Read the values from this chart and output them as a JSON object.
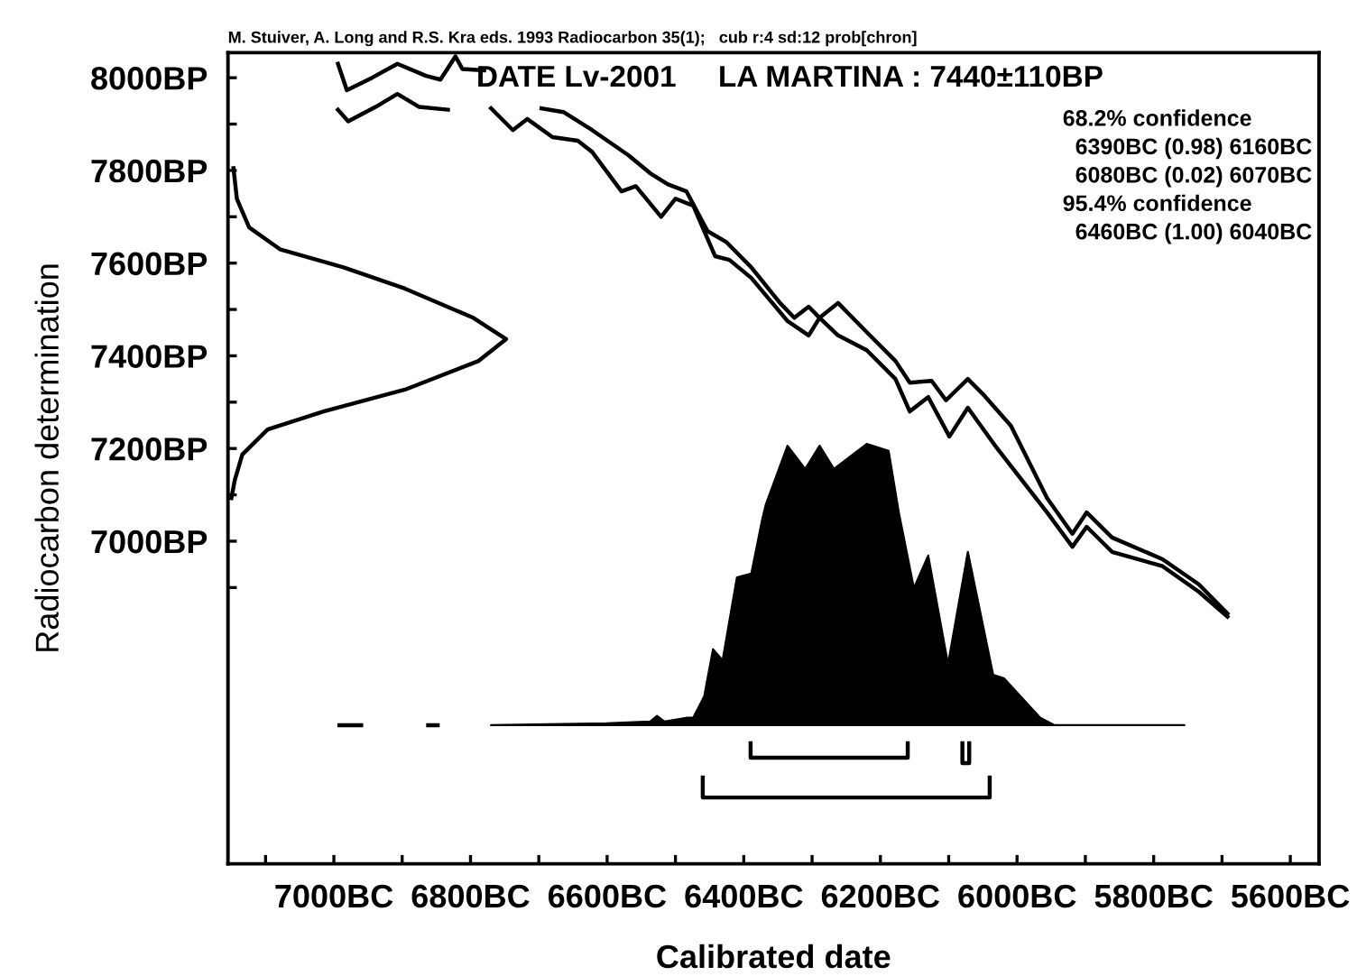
{
  "chart_data": {
    "type": "line",
    "title": "DATE Lv-2001     LA MARTINA : 7440±110BP",
    "xlabel": "Calibrated date",
    "ylabel": "Radiocarbon determination",
    "annotations": [
      "M. Stuiver, A. Long and R.S. Kra eds. 1993 Radiocarbon 35(1);   cub r:4 sd:12 prob[chron]",
      "68.2% confidence\n  6390BC (0.98) 6160BC\n  6080BC (0.02) 6070BC\n95.4% confidence\n  6460BC (1.00) 6040BC"
    ],
    "xlim": [
      -7155,
      -5558
    ],
    "ylim": [
      6304,
      8054
    ],
    "xticks": [
      {
        "value": -7100,
        "label": null
      },
      {
        "value": -7000,
        "label": "7000BC"
      },
      {
        "value": -6900,
        "label": null
      },
      {
        "value": -6800,
        "label": "6800BC"
      },
      {
        "value": -6700,
        "label": null
      },
      {
        "value": -6600,
        "label": "6600BC"
      },
      {
        "value": -6500,
        "label": null
      },
      {
        "value": -6400,
        "label": "6400BC"
      },
      {
        "value": -6300,
        "label": null
      },
      {
        "value": -6200,
        "label": "6200BC"
      },
      {
        "value": -6100,
        "label": null
      },
      {
        "value": -6000,
        "label": "6000BC"
      },
      {
        "value": -5900,
        "label": null
      },
      {
        "value": -5800,
        "label": "5800BC"
      },
      {
        "value": -5700,
        "label": null
      },
      {
        "value": -5600,
        "label": "5600BC"
      }
    ],
    "yticks": [
      {
        "value": 6900,
        "label": null
      },
      {
        "value": 7000,
        "label": "7000BP"
      },
      {
        "value": 7100,
        "label": null
      },
      {
        "value": 7200,
        "label": "7200BP"
      },
      {
        "value": 7300,
        "label": null
      },
      {
        "value": 7400,
        "label": "7400BP"
      },
      {
        "value": 7500,
        "label": null
      },
      {
        "value": 7600,
        "label": "7600BP"
      },
      {
        "value": 7700,
        "label": null
      },
      {
        "value": 7800,
        "label": "7800BP"
      },
      {
        "value": 7900,
        "label": null
      },
      {
        "value": 8000,
        "label": "8000BP"
      }
    ],
    "grid": false,
    "legend": false,
    "series": [
      {
        "color": "#000000",
        "x": [
          -6994,
          -6981,
          -6944,
          -6907,
          -6865,
          -6844,
          -6822,
          -6812,
          -6780,
          -6740,
          -6696,
          -6664,
          -6622,
          -6569,
          -6537,
          -6511,
          -6484,
          -6453,
          -6426,
          -6389,
          -6347,
          -6326,
          -6305,
          -6289,
          -6262,
          -6220,
          -6178,
          -6157,
          -6125,
          -6104,
          -6072,
          -6051,
          -6009,
          -5956,
          -5919,
          -5898,
          -5861,
          -5787,
          -5734,
          -5692
        ],
        "values": [
          8030,
          7973,
          8000,
          8030,
          8004,
          7996,
          8046,
          8019,
          8016,
          null,
          7934,
          7926,
          7887,
          7833,
          7794,
          7770,
          7755,
          7669,
          7646,
          7591,
          7514,
          7482,
          7506,
          7482,
          7514,
          7451,
          7389,
          7342,
          7346,
          7304,
          7350,
          7319,
          7249,
          7093,
          7016,
          7062,
          7008,
          6961,
          6907,
          6844
        ]
      },
      {
        "color": "#000000",
        "x": [
          -6994,
          -6979,
          -6939,
          -6907,
          -6875,
          -6833,
          -6800,
          -6770,
          -6738,
          -6717,
          -6680,
          -6643,
          -6622,
          -6579,
          -6558,
          -6521,
          -6500,
          -6474,
          -6442,
          -6421,
          -6389,
          -6336,
          -6305,
          -6289,
          -6262,
          -6220,
          -6178,
          -6157,
          -6130,
          -6099,
          -6072,
          -6030,
          -5956,
          -5919,
          -5898,
          -5861,
          -5787,
          -5734,
          -5692
        ],
        "values": [
          7931,
          7906,
          7937,
          7965,
          7937,
          7931,
          null,
          7934,
          7887,
          7911,
          7872,
          7864,
          7840,
          7755,
          7766,
          7700,
          7739,
          7724,
          7615,
          7607,
          7568,
          7475,
          7444,
          7482,
          7444,
          7412,
          7350,
          7280,
          7311,
          7226,
          7288,
          7202,
          7062,
          6988,
          7031,
          6977,
          6946,
          6891,
          6837
        ]
      },
      {
        "color": "#000000",
        "x": [
          -7147,
          -7142,
          -7124,
          -7079,
          -6986,
          -6896,
          -6796,
          -6748,
          -6788,
          -6896,
          -7015,
          -7097,
          -7134,
          -7145,
          -7150
        ],
        "values": [
          7805,
          7739,
          7677,
          7630,
          7591,
          7545,
          7482,
          7436,
          7389,
          7327,
          7280,
          7241,
          7187,
          7132,
          7093
        ]
      },
      {
        "type": "line",
        "color": "#000000",
        "x": [
          -6992,
          -6960,
          null,
          -6862,
          -6848
        ],
        "values": [
          6603,
          6603,
          null,
          6603,
          6603
        ]
      },
      {
        "type": "area",
        "color": "#000000",
        "x": [
          -6770,
          -6601,
          -6537,
          -6527,
          -6516,
          -6484,
          -6474,
          -6458,
          -6445,
          -6431,
          -6410,
          -6389,
          -6373,
          -6368,
          -6336,
          -6310,
          -6289,
          -6268,
          -6220,
          -6188,
          -6173,
          -6151,
          -6130,
          -6101,
          -6072,
          -6035,
          -6019,
          -5966,
          -5945,
          -5755
        ],
        "values": [
          6603,
          6607,
          6611,
          6623,
          6611,
          6619,
          6619,
          6665,
          6767,
          6743,
          6922,
          6930,
          7047,
          7078,
          7206,
          7156,
          7206,
          7156,
          7210,
          7195,
          7062,
          6899,
          6969,
          6735,
          6977,
          6712,
          6704,
          6619,
          6603,
          6603
        ]
      },
      {
        "color": "#000000",
        "x": [
          -6390,
          -6390,
          -6160,
          -6160
        ],
        "values": [
          6564,
          6533,
          6533,
          6564
        ]
      },
      {
        "color": "#000000",
        "x": [
          -6080,
          -6080,
          -6070,
          -6070
        ],
        "values": [
          6564,
          6521,
          6521,
          6564
        ]
      },
      {
        "color": "#000000",
        "x": [
          -6460,
          -6460,
          -6040,
          -6040
        ],
        "values": [
          6490,
          6447,
          6447,
          6490
        ]
      }
    ]
  }
}
